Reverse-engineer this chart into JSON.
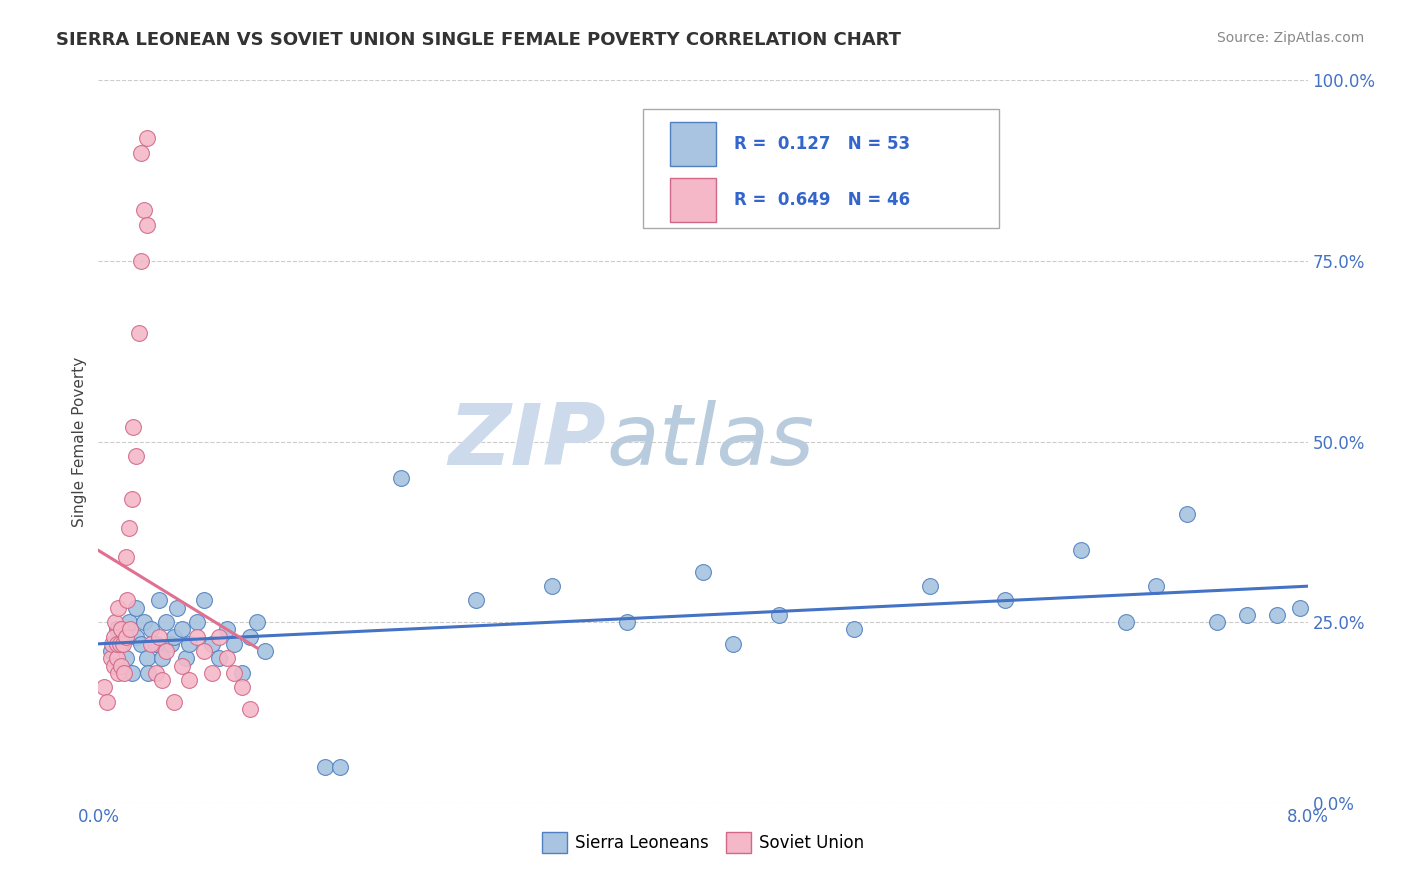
{
  "title": "SIERRA LEONEAN VS SOVIET UNION SINGLE FEMALE POVERTY CORRELATION CHART",
  "source": "Source: ZipAtlas.com",
  "ylabel": "Single Female Poverty",
  "xlim": [
    0.0,
    8.0
  ],
  "ylim": [
    0.0,
    100.0
  ],
  "right_yticks": [
    0,
    25,
    50,
    75,
    100
  ],
  "right_yticklabels": [
    "0.0%",
    "25.0%",
    "50.0%",
    "75.0%",
    "100.0%"
  ],
  "color_sierra": "#a8c4e0",
  "color_soviet": "#f4b8c8",
  "color_sierra_edge": "#5080c0",
  "color_soviet_edge": "#d06888",
  "color_sierra_line": "#4472c4",
  "color_soviet_line": "#e07090",
  "watermark": "ZIPatlas",
  "watermark_color": "#ccdaec",
  "sierra_label": "Sierra Leoneans",
  "soviet_label": "Soviet Union",
  "legend_text1": "R =  0.127   N = 53",
  "legend_text2": "R =  0.649   N = 46",
  "sierra_x": [
    0.08,
    0.12,
    0.15,
    0.18,
    0.2,
    0.22,
    0.25,
    0.25,
    0.28,
    0.3,
    0.32,
    0.33,
    0.35,
    0.38,
    0.4,
    0.42,
    0.45,
    0.48,
    0.5,
    0.52,
    0.55,
    0.58,
    0.6,
    0.65,
    0.7,
    0.75,
    0.8,
    0.85,
    0.9,
    0.95,
    1.0,
    1.05,
    1.1,
    1.5,
    1.6,
    2.0,
    2.5,
    3.0,
    3.5,
    4.0,
    4.2,
    4.5,
    5.0,
    5.5,
    6.0,
    6.5,
    6.8,
    7.0,
    7.2,
    7.4,
    7.6,
    7.8,
    7.95
  ],
  "sierra_y": [
    21,
    24,
    22,
    20,
    25,
    18,
    23,
    27,
    22,
    25,
    20,
    18,
    24,
    22,
    28,
    20,
    25,
    22,
    23,
    27,
    24,
    20,
    22,
    25,
    28,
    22,
    20,
    24,
    22,
    18,
    23,
    25,
    21,
    5,
    5,
    45,
    28,
    30,
    25,
    32,
    22,
    26,
    24,
    30,
    28,
    35,
    25,
    30,
    40,
    25,
    26,
    26,
    27
  ],
  "soviet_x": [
    0.04,
    0.06,
    0.08,
    0.09,
    0.1,
    0.1,
    0.11,
    0.12,
    0.12,
    0.13,
    0.13,
    0.14,
    0.15,
    0.15,
    0.16,
    0.17,
    0.18,
    0.18,
    0.19,
    0.2,
    0.21,
    0.22,
    0.23,
    0.25,
    0.27,
    0.28,
    0.3,
    0.32,
    0.35,
    0.38,
    0.4,
    0.42,
    0.45,
    0.5,
    0.55,
    0.6,
    0.65,
    0.7,
    0.75,
    0.8,
    0.85,
    0.9,
    0.95,
    1.0,
    0.32,
    0.28
  ],
  "soviet_y": [
    16,
    14,
    20,
    22,
    23,
    19,
    25,
    20,
    22,
    27,
    18,
    22,
    19,
    24,
    22,
    18,
    23,
    34,
    28,
    38,
    24,
    42,
    52,
    48,
    65,
    75,
    82,
    92,
    22,
    18,
    23,
    17,
    21,
    14,
    19,
    17,
    23,
    21,
    18,
    23,
    20,
    18,
    16,
    13,
    80,
    90
  ]
}
